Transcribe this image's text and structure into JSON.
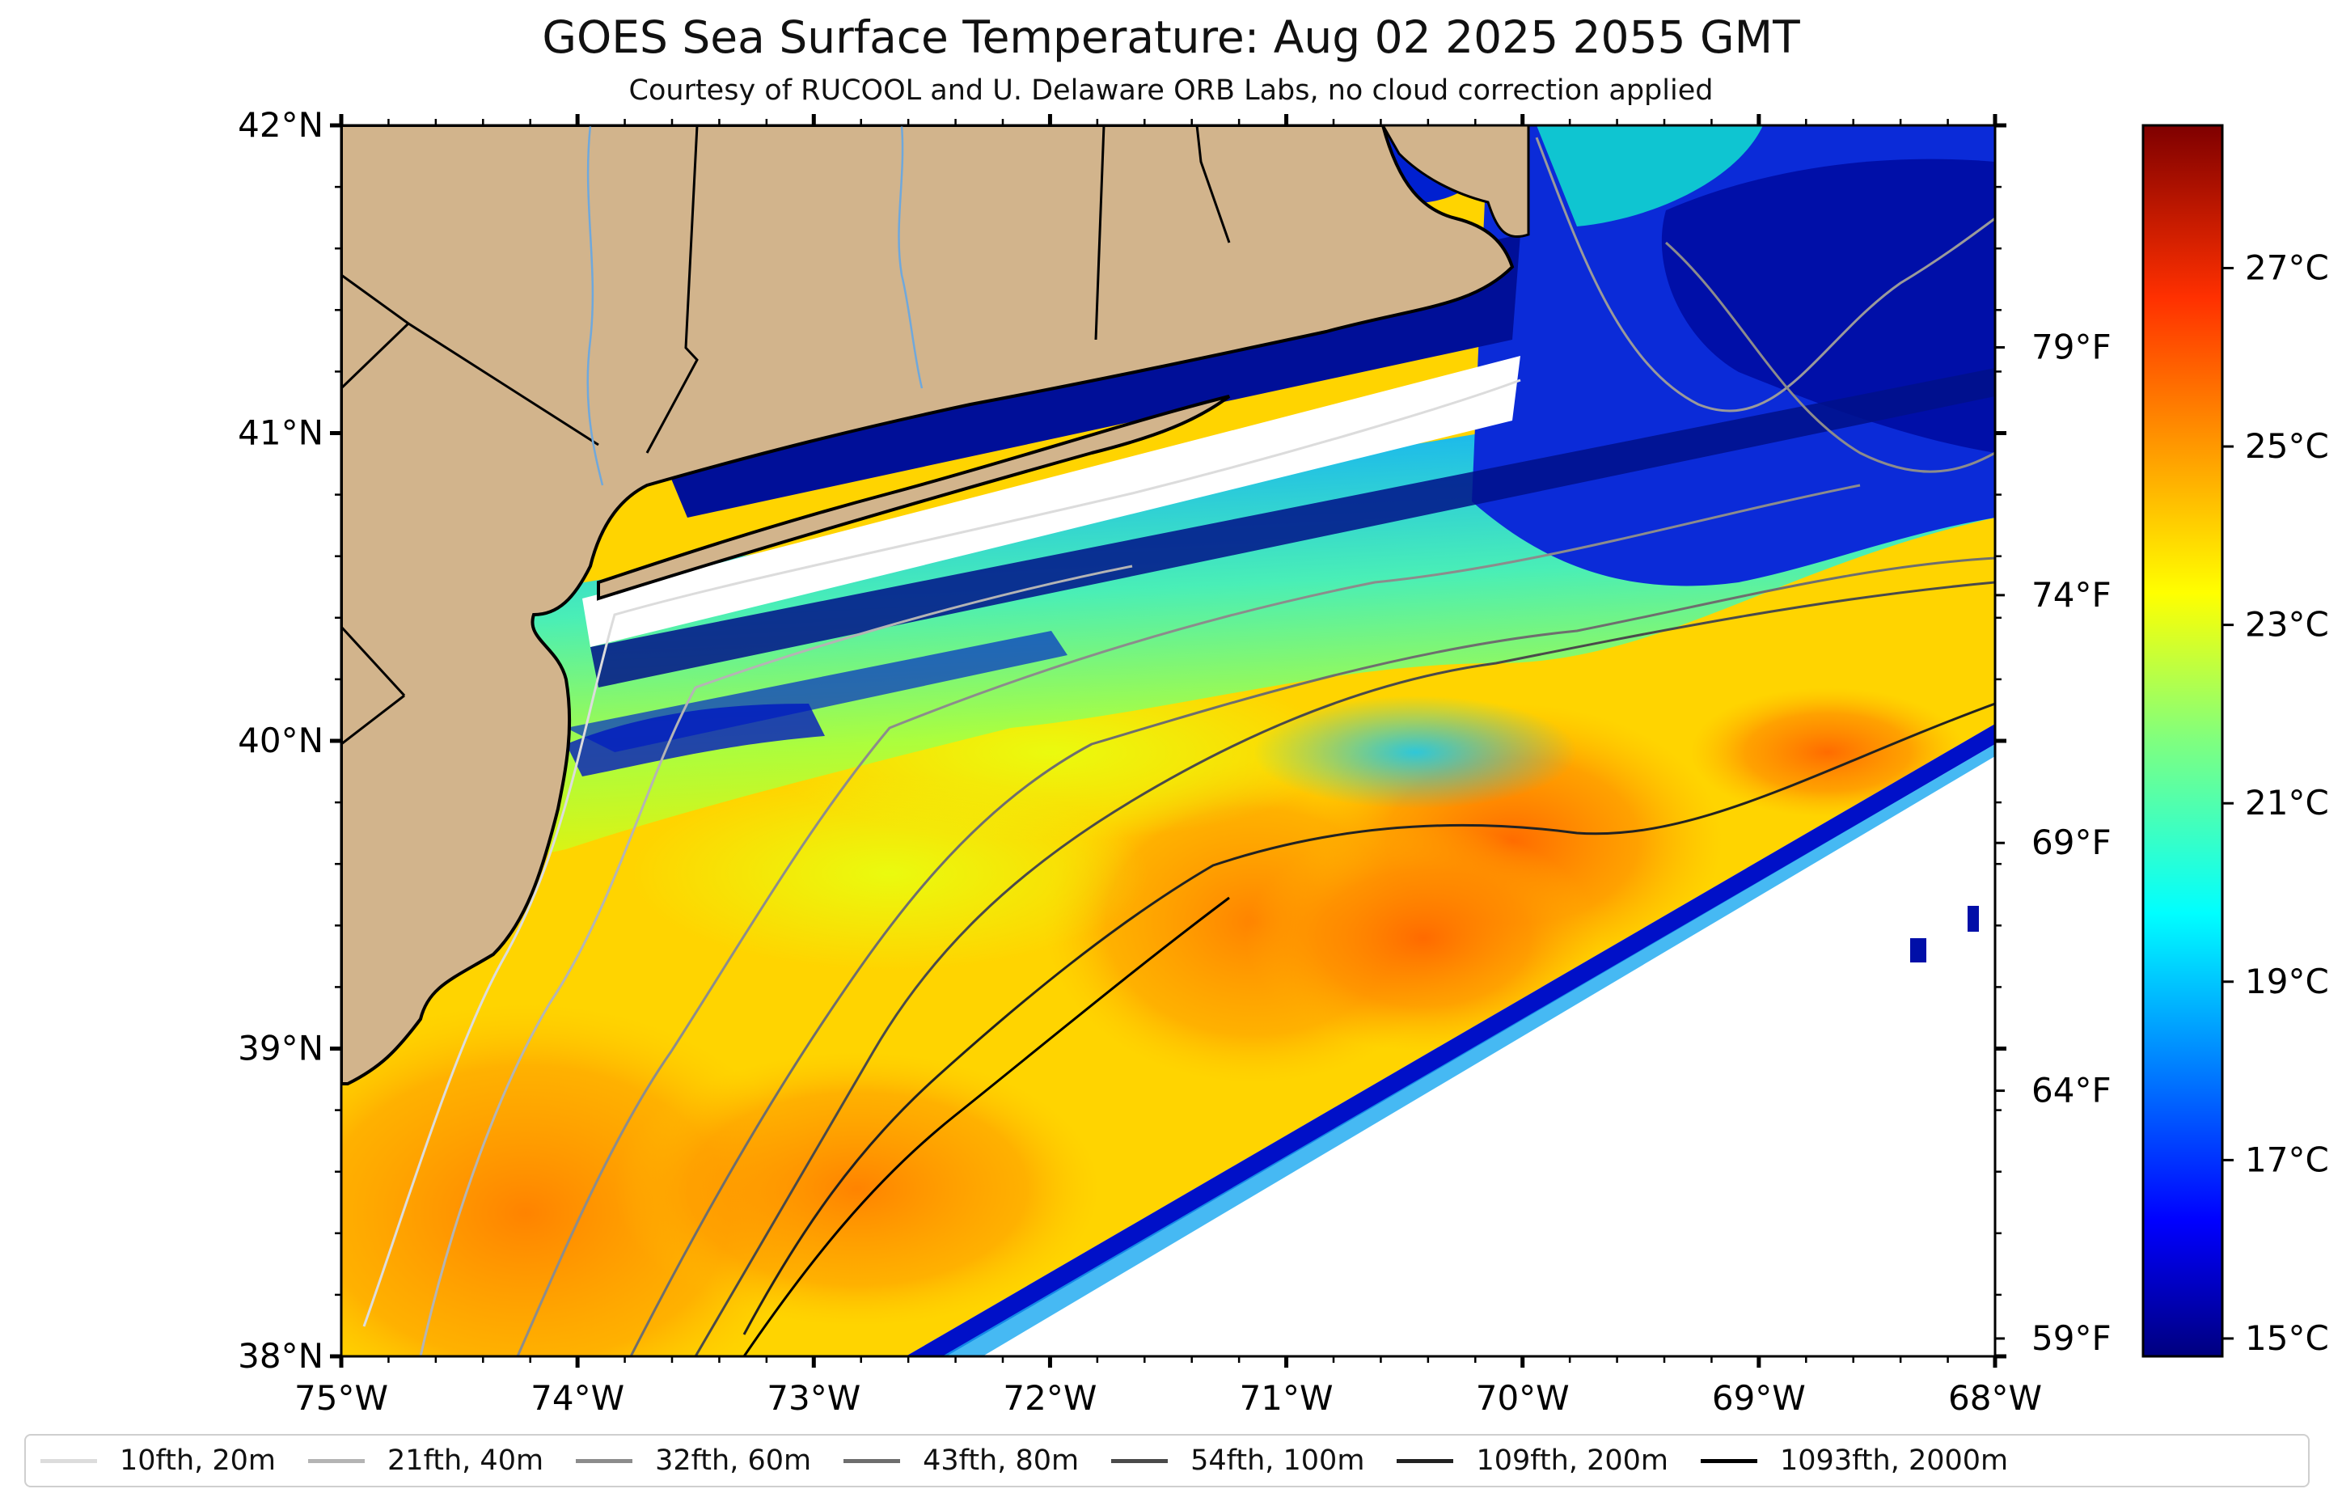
{
  "header": {
    "title": "GOES Sea Surface Temperature: Aug 02 2025 2055 GMT",
    "subtitle": "Courtesy of RUCOOL and U. Delaware ORB Labs, no cloud correction applied"
  },
  "map": {
    "region": "Mid-Atlantic Bight / New York Bight",
    "lon_range": [
      -75,
      -68
    ],
    "lat_range": [
      38,
      42
    ],
    "lat_tick_labels": [
      "42°N",
      "41°N",
      "40°N",
      "39°N",
      "38°N"
    ],
    "lon_tick_labels": [
      "75°W",
      "74°W",
      "73°W",
      "72°W",
      "71°W",
      "70°W",
      "69°W",
      "68°W"
    ],
    "land_color": "#d2b48c",
    "colormap": "jet",
    "no_data_color": "#ffffff"
  },
  "colorbar": {
    "range_celsius": [
      14.8,
      28.6
    ],
    "celsius_labels": [
      "27°C",
      "25°C",
      "23°C",
      "21°C",
      "19°C",
      "17°C",
      "15°C"
    ],
    "fahrenheit_labels": [
      "79°F",
      "74°F",
      "69°F",
      "64°F",
      "59°F"
    ]
  },
  "legend": {
    "items": [
      {
        "label": "10fth, 20m",
        "color": "#dcdcdc"
      },
      {
        "label": "21fth, 40m",
        "color": "#b4b4b4"
      },
      {
        "label": "32fth, 60m",
        "color": "#8c8c8c"
      },
      {
        "label": "43fth, 80m",
        "color": "#6e6e6e"
      },
      {
        "label": "54fth, 100m",
        "color": "#4a4a4a"
      },
      {
        "label": "109fth, 200m",
        "color": "#222222"
      },
      {
        "label": "1093fth, 2000m",
        "color": "#000000"
      }
    ]
  }
}
